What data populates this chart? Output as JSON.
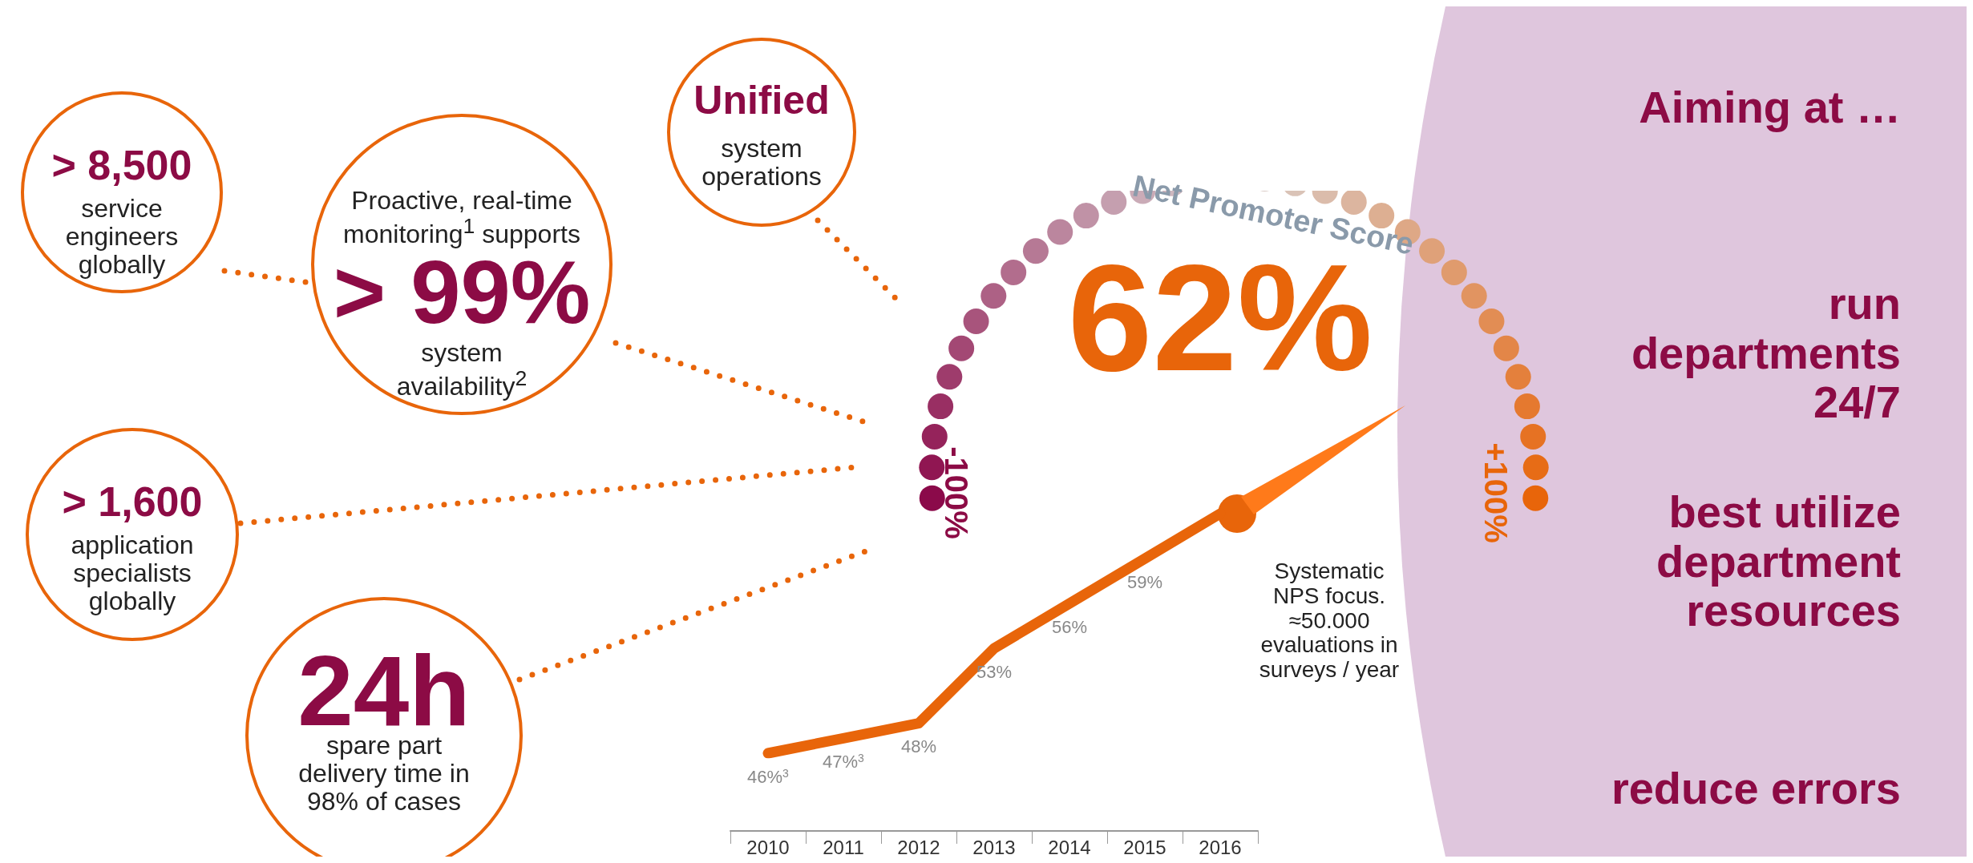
{
  "chart_data": {
    "type": "line",
    "categories": [
      "2010",
      "2011",
      "2012",
      "2013",
      "2014",
      "2015",
      "2016"
    ],
    "series": [
      {
        "color": "#e8650a",
        "values": [
          46,
          47,
          48,
          53,
          56,
          59,
          62
        ],
        "value_labels": [
          "46%$^{3}$",
          "47%$^{3}$",
          "48%",
          "53%",
          "56%",
          "59%",
          "62%"
        ]
      }
    ],
    "annotations": [
      "> 8,500",
      "service engineers globally",
      "Proactive, real-time monitoring$^{1}$ supports",
      "> 99%",
      "system availability$^{2}$",
      "Unified",
      "system operations",
      "> 1,600",
      "application specialists globally",
      "24h",
      "spare part delivery time in 98% of cases",
      "Net Promoter Score",
      "-100%",
      "+100%",
      "Systematic NPS focus. ≈50.000 evaluations in surveys / year",
      "Aiming at …",
      "run departments 24/7",
      "best utilize department resources",
      "reduce errors"
    ]
  }
}
